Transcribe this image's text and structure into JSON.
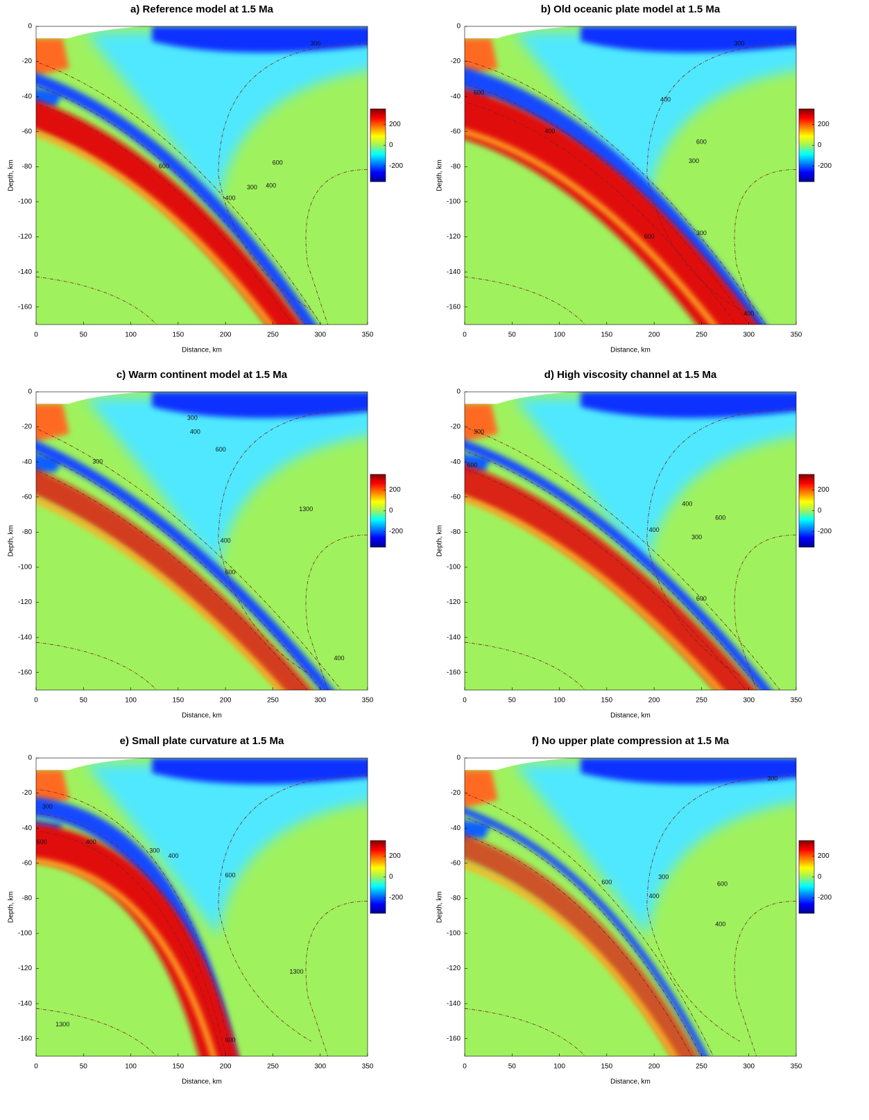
{
  "chart_data": [
    {
      "type": "heatmap",
      "title": "a) Reference model at 1.5 Ma",
      "xlabel": "Distance, km",
      "ylabel": "Depth, km",
      "xlim": [
        0,
        350
      ],
      "ylim": [
        -170,
        0
      ],
      "xticks": [
        0,
        50,
        100,
        150,
        200,
        250,
        300,
        350
      ],
      "yticks": [
        0,
        -20,
        -40,
        -60,
        -80,
        -100,
        -120,
        -140,
        -160
      ],
      "colormap": "jet",
      "clim": [
        -350,
        350
      ],
      "cticks": [
        -200,
        0,
        200
      ],
      "contour_labels": [
        {
          "value": 300,
          "x": 295,
          "y": -10
        },
        {
          "value": 600,
          "x": 135,
          "y": -80
        },
        {
          "value": 400,
          "x": 205,
          "y": -98
        },
        {
          "value": 300,
          "x": 228,
          "y": -92
        },
        {
          "value": 600,
          "x": 255,
          "y": -78
        },
        {
          "value": 400,
          "x": 248,
          "y": -91
        }
      ]
    },
    {
      "type": "heatmap",
      "title": "b) Old oceanic plate model at 1.5 Ma",
      "xlabel": "Distance, km",
      "ylabel": "Depth, km",
      "xlim": [
        0,
        350
      ],
      "ylim": [
        -170,
        0
      ],
      "xticks": [
        0,
        50,
        100,
        150,
        200,
        250,
        300,
        350
      ],
      "yticks": [
        0,
        -20,
        -40,
        -60,
        -80,
        -100,
        -120,
        -140,
        -160
      ],
      "colormap": "jet",
      "clim": [
        -350,
        350
      ],
      "cticks": [
        -200,
        0,
        200
      ],
      "contour_labels": [
        {
          "value": 300,
          "x": 290,
          "y": -10
        },
        {
          "value": 600,
          "x": 15,
          "y": -38
        },
        {
          "value": 400,
          "x": 90,
          "y": -60
        },
        {
          "value": 400,
          "x": 212,
          "y": -42
        },
        {
          "value": 600,
          "x": 250,
          "y": -66
        },
        {
          "value": 300,
          "x": 242,
          "y": -77
        },
        {
          "value": 300,
          "x": 250,
          "y": -118
        },
        {
          "value": 600,
          "x": 195,
          "y": -120
        },
        {
          "value": 400,
          "x": 300,
          "y": -164
        }
      ]
    },
    {
      "type": "heatmap",
      "title": "c) Warm continent model at 1.5 Ma",
      "xlabel": "Distance, km",
      "ylabel": "Depth, km",
      "xlim": [
        0,
        350
      ],
      "ylim": [
        -170,
        0
      ],
      "xticks": [
        0,
        50,
        100,
        150,
        200,
        250,
        300,
        350
      ],
      "yticks": [
        0,
        -20,
        -40,
        -60,
        -80,
        -100,
        -120,
        -140,
        -160
      ],
      "colormap": "jet",
      "clim": [
        -350,
        350
      ],
      "cticks": [
        -200,
        0,
        200
      ],
      "contour_labels": [
        {
          "value": 300,
          "x": 165,
          "y": -15
        },
        {
          "value": 400,
          "x": 168,
          "y": -23
        },
        {
          "value": 300,
          "x": 65,
          "y": -40
        },
        {
          "value": 600,
          "x": 195,
          "y": -33
        },
        {
          "value": 1300,
          "x": 285,
          "y": -67
        },
        {
          "value": 400,
          "x": 200,
          "y": -85
        },
        {
          "value": 600,
          "x": 205,
          "y": -103
        },
        {
          "value": 400,
          "x": 320,
          "y": -152
        }
      ]
    },
    {
      "type": "heatmap",
      "title": "d) High viscosity channel at 1.5 Ma",
      "xlabel": "Distance, km",
      "ylabel": "Depth, km",
      "xlim": [
        0,
        350
      ],
      "ylim": [
        -170,
        0
      ],
      "xticks": [
        0,
        50,
        100,
        150,
        200,
        250,
        300,
        350
      ],
      "yticks": [
        0,
        -20,
        -40,
        -60,
        -80,
        -100,
        -120,
        -140,
        -160
      ],
      "colormap": "jet",
      "clim": [
        -350,
        350
      ],
      "cticks": [
        -200,
        0,
        200
      ],
      "contour_labels": [
        {
          "value": 300,
          "x": 15,
          "y": -23
        },
        {
          "value": 600,
          "x": 8,
          "y": -42
        },
        {
          "value": 400,
          "x": 235,
          "y": -64
        },
        {
          "value": 600,
          "x": 270,
          "y": -72
        },
        {
          "value": 400,
          "x": 200,
          "y": -79
        },
        {
          "value": 300,
          "x": 245,
          "y": -83
        },
        {
          "value": 600,
          "x": 250,
          "y": -118
        }
      ]
    },
    {
      "type": "heatmap",
      "title": "e) Small plate curvature at 1.5 Ma",
      "xlabel": "Distance, km",
      "ylabel": "Depth, km",
      "xlim": [
        0,
        350
      ],
      "ylim": [
        -170,
        0
      ],
      "xticks": [
        0,
        50,
        100,
        150,
        200,
        250,
        300,
        350
      ],
      "yticks": [
        0,
        -20,
        -40,
        -60,
        -80,
        -100,
        -120,
        -140,
        -160
      ],
      "colormap": "jet",
      "clim": [
        -350,
        350
      ],
      "cticks": [
        -200,
        0,
        200
      ],
      "contour_labels": [
        {
          "value": 300,
          "x": 12,
          "y": -28
        },
        {
          "value": 600,
          "x": 6,
          "y": -48
        },
        {
          "value": 400,
          "x": 58,
          "y": -48
        },
        {
          "value": 300,
          "x": 125,
          "y": -53
        },
        {
          "value": 400,
          "x": 145,
          "y": -56
        },
        {
          "value": 600,
          "x": 205,
          "y": -67
        },
        {
          "value": 1300,
          "x": 275,
          "y": -122
        },
        {
          "value": 1300,
          "x": 28,
          "y": -152
        },
        {
          "value": 600,
          "x": 205,
          "y": -161
        }
      ]
    },
    {
      "type": "heatmap",
      "title": "f) No upper plate compression at 1.5 Ma",
      "xlabel": "Distance, km",
      "ylabel": "Depth, km",
      "xlim": [
        0,
        350
      ],
      "ylim": [
        -170,
        0
      ],
      "xticks": [
        0,
        50,
        100,
        150,
        200,
        250,
        300,
        350
      ],
      "yticks": [
        0,
        -20,
        -40,
        -60,
        -80,
        -100,
        -120,
        -140,
        -160
      ],
      "colormap": "jet",
      "clim": [
        -350,
        350
      ],
      "cticks": [
        -200,
        0,
        200
      ],
      "contour_labels": [
        {
          "value": 300,
          "x": 325,
          "y": -12
        },
        {
          "value": 600,
          "x": 150,
          "y": -71
        },
        {
          "value": 400,
          "x": 200,
          "y": -79
        },
        {
          "value": 300,
          "x": 210,
          "y": -68
        },
        {
          "value": 600,
          "x": 272,
          "y": -72
        },
        {
          "value": 400,
          "x": 270,
          "y": -95
        }
      ]
    }
  ]
}
